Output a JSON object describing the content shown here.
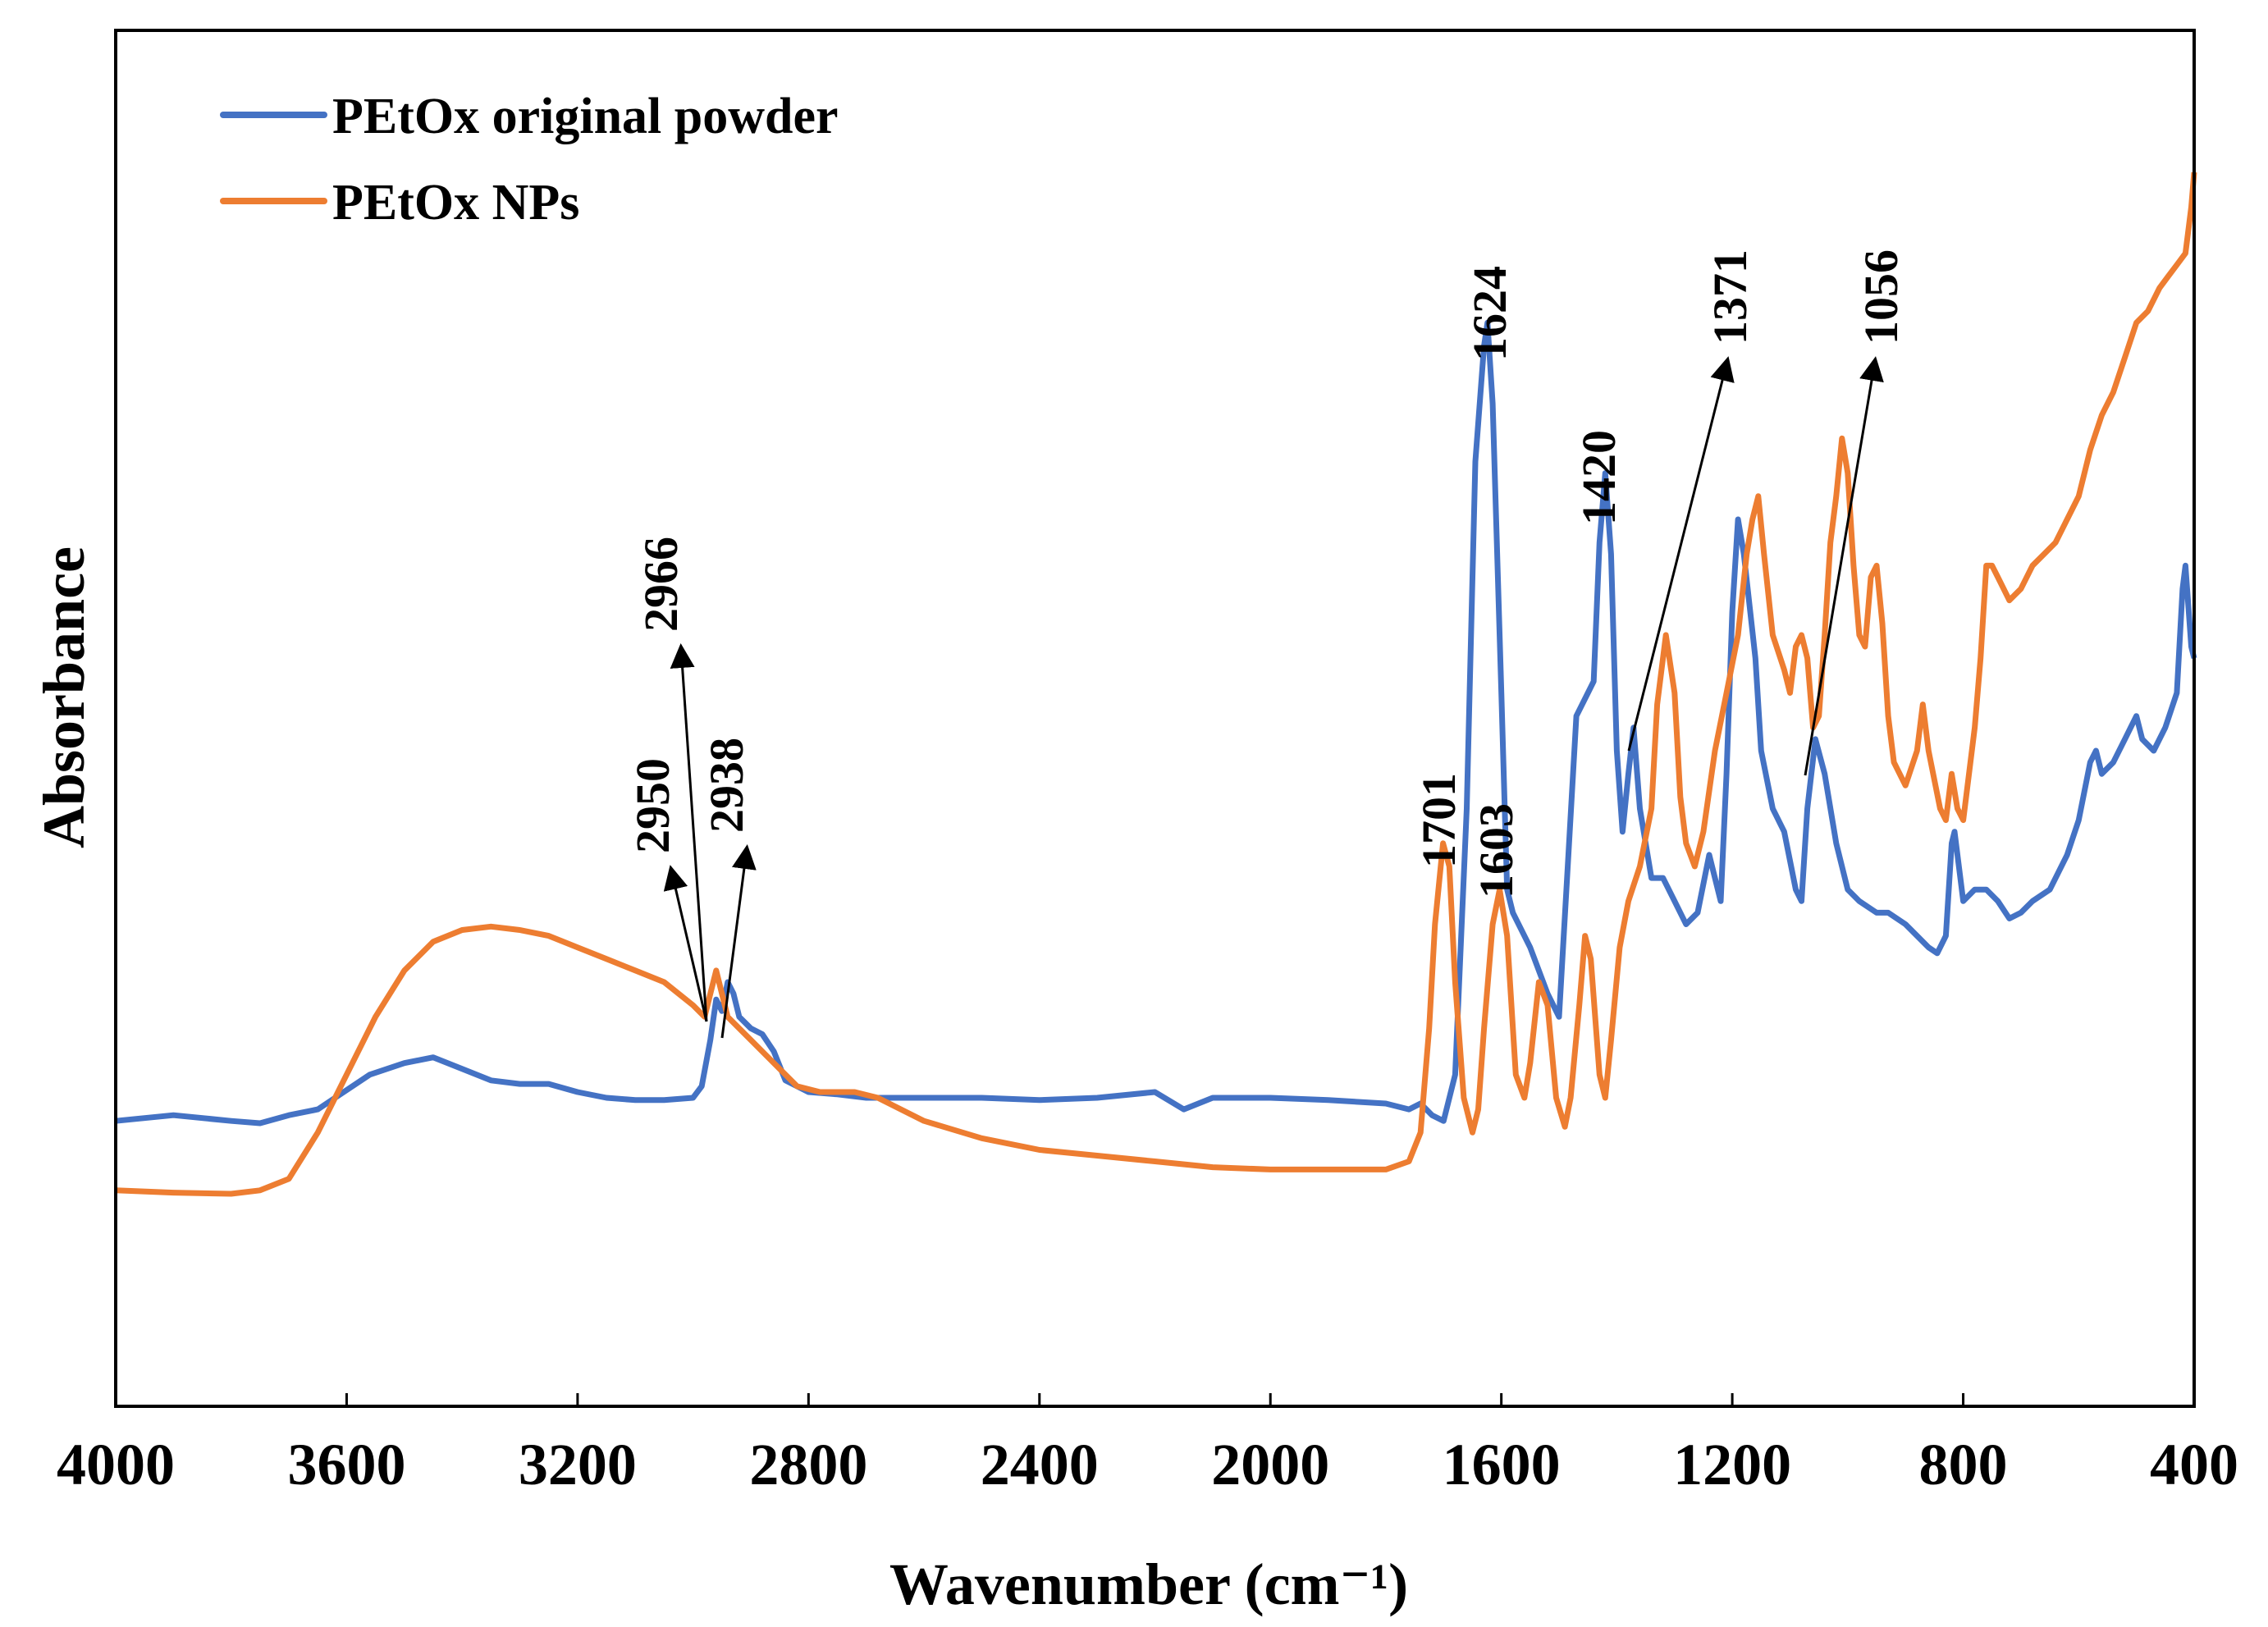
{
  "chart_data": {
    "type": "line",
    "title": "",
    "xlabel": "Wavenumber (cm⁻¹)",
    "ylabel": "Absorbance",
    "xlim": [
      4000,
      400
    ],
    "ylim": [
      0,
      1
    ],
    "x_reversed": true,
    "y_ticks_shown": false,
    "grid": false,
    "legend_position": "top-left",
    "x_ticks": [
      {
        "value": 4000,
        "label": "4000"
      },
      {
        "value": 3600,
        "label": "3600"
      },
      {
        "value": 3200,
        "label": "3200"
      },
      {
        "value": 2800,
        "label": "2800"
      },
      {
        "value": 2400,
        "label": "2400"
      },
      {
        "value": 2000,
        "label": "2000"
      },
      {
        "value": 1600,
        "label": "1600"
      },
      {
        "value": 1200,
        "label": "1200"
      },
      {
        "value": 800,
        "label": "800"
      },
      {
        "value": 400,
        "label": "400"
      }
    ],
    "series": [
      {
        "name": "PEtOx original powder",
        "color": "#4472C4",
        "points": [
          [
            4000,
            0.18
          ],
          [
            3900,
            0.185
          ],
          [
            3800,
            0.18
          ],
          [
            3750,
            0.178
          ],
          [
            3700,
            0.185
          ],
          [
            3650,
            0.19
          ],
          [
            3620,
            0.2
          ],
          [
            3560,
            0.22
          ],
          [
            3500,
            0.23
          ],
          [
            3450,
            0.235
          ],
          [
            3400,
            0.225
          ],
          [
            3350,
            0.215
          ],
          [
            3300,
            0.212
          ],
          [
            3250,
            0.212
          ],
          [
            3200,
            0.205
          ],
          [
            3150,
            0.2
          ],
          [
            3100,
            0.198
          ],
          [
            3050,
            0.198
          ],
          [
            3000,
            0.2
          ],
          [
            2985,
            0.21
          ],
          [
            2970,
            0.25
          ],
          [
            2960,
            0.285
          ],
          [
            2950,
            0.275
          ],
          [
            2940,
            0.3
          ],
          [
            2930,
            0.29
          ],
          [
            2920,
            0.27
          ],
          [
            2900,
            0.26
          ],
          [
            2880,
            0.255
          ],
          [
            2860,
            0.24
          ],
          [
            2840,
            0.215
          ],
          [
            2800,
            0.205
          ],
          [
            2750,
            0.203
          ],
          [
            2700,
            0.2
          ],
          [
            2600,
            0.2
          ],
          [
            2500,
            0.2
          ],
          [
            2400,
            0.198
          ],
          [
            2300,
            0.2
          ],
          [
            2200,
            0.205
          ],
          [
            2150,
            0.19
          ],
          [
            2100,
            0.2
          ],
          [
            2000,
            0.2
          ],
          [
            1900,
            0.198
          ],
          [
            1800,
            0.195
          ],
          [
            1760,
            0.19
          ],
          [
            1740,
            0.195
          ],
          [
            1720,
            0.185
          ],
          [
            1700,
            0.18
          ],
          [
            1680,
            0.22
          ],
          [
            1660,
            0.45
          ],
          [
            1645,
            0.75
          ],
          [
            1630,
            0.85
          ],
          [
            1624,
            0.87
          ],
          [
            1615,
            0.8
          ],
          [
            1600,
            0.55
          ],
          [
            1590,
            0.38
          ],
          [
            1580,
            0.36
          ],
          [
            1550,
            0.33
          ],
          [
            1520,
            0.29
          ],
          [
            1500,
            0.27
          ],
          [
            1485,
            0.4
          ],
          [
            1470,
            0.53
          ],
          [
            1450,
            0.55
          ],
          [
            1440,
            0.56
          ],
          [
            1430,
            0.68
          ],
          [
            1420,
            0.74
          ],
          [
            1410,
            0.67
          ],
          [
            1400,
            0.5
          ],
          [
            1390,
            0.43
          ],
          [
            1380,
            0.48
          ],
          [
            1371,
            0.52
          ],
          [
            1360,
            0.45
          ],
          [
            1340,
            0.39
          ],
          [
            1320,
            0.39
          ],
          [
            1300,
            0.37
          ],
          [
            1280,
            0.35
          ],
          [
            1260,
            0.36
          ],
          [
            1240,
            0.41
          ],
          [
            1220,
            0.37
          ],
          [
            1210,
            0.48
          ],
          [
            1200,
            0.62
          ],
          [
            1190,
            0.7
          ],
          [
            1180,
            0.67
          ],
          [
            1160,
            0.58
          ],
          [
            1150,
            0.5
          ],
          [
            1130,
            0.45
          ],
          [
            1110,
            0.43
          ],
          [
            1090,
            0.38
          ],
          [
            1080,
            0.37
          ],
          [
            1070,
            0.45
          ],
          [
            1056,
            0.51
          ],
          [
            1040,
            0.48
          ],
          [
            1020,
            0.42
          ],
          [
            1000,
            0.38
          ],
          [
            980,
            0.37
          ],
          [
            950,
            0.36
          ],
          [
            930,
            0.36
          ],
          [
            900,
            0.35
          ],
          [
            880,
            0.34
          ],
          [
            860,
            0.33
          ],
          [
            845,
            0.325
          ],
          [
            830,
            0.34
          ],
          [
            820,
            0.42
          ],
          [
            815,
            0.43
          ],
          [
            800,
            0.37
          ],
          [
            780,
            0.38
          ],
          [
            760,
            0.38
          ],
          [
            740,
            0.37
          ],
          [
            720,
            0.355
          ],
          [
            700,
            0.36
          ],
          [
            680,
            0.37
          ],
          [
            650,
            0.38
          ],
          [
            620,
            0.41
          ],
          [
            600,
            0.44
          ],
          [
            580,
            0.49
          ],
          [
            570,
            0.5
          ],
          [
            560,
            0.48
          ],
          [
            540,
            0.49
          ],
          [
            520,
            0.51
          ],
          [
            500,
            0.53
          ],
          [
            490,
            0.51
          ],
          [
            470,
            0.5
          ],
          [
            450,
            0.52
          ],
          [
            430,
            0.55
          ],
          [
            420,
            0.64
          ],
          [
            415,
            0.66
          ],
          [
            405,
            0.59
          ],
          [
            400,
            0.58
          ]
        ]
      },
      {
        "name": "PEtOx NPs",
        "color": "#ED7D31",
        "points": [
          [
            4000,
            0.12
          ],
          [
            3900,
            0.118
          ],
          [
            3800,
            0.117
          ],
          [
            3750,
            0.12
          ],
          [
            3700,
            0.13
          ],
          [
            3650,
            0.17
          ],
          [
            3600,
            0.22
          ],
          [
            3550,
            0.27
          ],
          [
            3500,
            0.31
          ],
          [
            3450,
            0.335
          ],
          [
            3400,
            0.345
          ],
          [
            3350,
            0.348
          ],
          [
            3300,
            0.345
          ],
          [
            3250,
            0.34
          ],
          [
            3200,
            0.33
          ],
          [
            3150,
            0.32
          ],
          [
            3100,
            0.31
          ],
          [
            3050,
            0.3
          ],
          [
            3000,
            0.28
          ],
          [
            2980,
            0.27
          ],
          [
            2970,
            0.29
          ],
          [
            2960,
            0.31
          ],
          [
            2950,
            0.29
          ],
          [
            2940,
            0.27
          ],
          [
            2900,
            0.25
          ],
          [
            2860,
            0.23
          ],
          [
            2820,
            0.21
          ],
          [
            2780,
            0.205
          ],
          [
            2720,
            0.205
          ],
          [
            2680,
            0.2
          ],
          [
            2600,
            0.18
          ],
          [
            2500,
            0.165
          ],
          [
            2400,
            0.155
          ],
          [
            2300,
            0.15
          ],
          [
            2200,
            0.145
          ],
          [
            2100,
            0.14
          ],
          [
            2000,
            0.138
          ],
          [
            1900,
            0.138
          ],
          [
            1800,
            0.138
          ],
          [
            1760,
            0.145
          ],
          [
            1740,
            0.17
          ],
          [
            1725,
            0.26
          ],
          [
            1715,
            0.35
          ],
          [
            1701,
            0.42
          ],
          [
            1690,
            0.4
          ],
          [
            1680,
            0.3
          ],
          [
            1665,
            0.2
          ],
          [
            1650,
            0.17
          ],
          [
            1640,
            0.19
          ],
          [
            1630,
            0.26
          ],
          [
            1615,
            0.35
          ],
          [
            1603,
            0.38
          ],
          [
            1590,
            0.34
          ],
          [
            1575,
            0.22
          ],
          [
            1560,
            0.2
          ],
          [
            1550,
            0.23
          ],
          [
            1535,
            0.3
          ],
          [
            1520,
            0.28
          ],
          [
            1505,
            0.2
          ],
          [
            1490,
            0.175
          ],
          [
            1480,
            0.2
          ],
          [
            1465,
            0.28
          ],
          [
            1455,
            0.34
          ],
          [
            1445,
            0.32
          ],
          [
            1430,
            0.22
          ],
          [
            1420,
            0.2
          ],
          [
            1410,
            0.25
          ],
          [
            1395,
            0.33
          ],
          [
            1380,
            0.37
          ],
          [
            1360,
            0.4
          ],
          [
            1340,
            0.45
          ],
          [
            1330,
            0.54
          ],
          [
            1315,
            0.6
          ],
          [
            1300,
            0.55
          ],
          [
            1290,
            0.46
          ],
          [
            1280,
            0.42
          ],
          [
            1265,
            0.4
          ],
          [
            1250,
            0.43
          ],
          [
            1230,
            0.5
          ],
          [
            1210,
            0.55
          ],
          [
            1190,
            0.6
          ],
          [
            1175,
            0.67
          ],
          [
            1165,
            0.7
          ],
          [
            1155,
            0.72
          ],
          [
            1145,
            0.67
          ],
          [
            1130,
            0.6
          ],
          [
            1110,
            0.57
          ],
          [
            1100,
            0.55
          ],
          [
            1090,
            0.59
          ],
          [
            1080,
            0.6
          ],
          [
            1070,
            0.58
          ],
          [
            1060,
            0.52
          ],
          [
            1050,
            0.53
          ],
          [
            1040,
            0.6
          ],
          [
            1030,
            0.68
          ],
          [
            1020,
            0.72
          ],
          [
            1010,
            0.77
          ],
          [
            1000,
            0.74
          ],
          [
            990,
            0.66
          ],
          [
            980,
            0.6
          ],
          [
            970,
            0.59
          ],
          [
            960,
            0.65
          ],
          [
            950,
            0.66
          ],
          [
            940,
            0.61
          ],
          [
            930,
            0.53
          ],
          [
            920,
            0.49
          ],
          [
            900,
            0.47
          ],
          [
            880,
            0.5
          ],
          [
            870,
            0.54
          ],
          [
            860,
            0.5
          ],
          [
            840,
            0.45
          ],
          [
            830,
            0.44
          ],
          [
            820,
            0.48
          ],
          [
            810,
            0.45
          ],
          [
            800,
            0.44
          ],
          [
            790,
            0.48
          ],
          [
            780,
            0.52
          ],
          [
            770,
            0.58
          ],
          [
            760,
            0.66
          ],
          [
            750,
            0.66
          ],
          [
            740,
            0.65
          ],
          [
            730,
            0.64
          ],
          [
            720,
            0.63
          ],
          [
            700,
            0.64
          ],
          [
            680,
            0.66
          ],
          [
            660,
            0.67
          ],
          [
            640,
            0.68
          ],
          [
            620,
            0.7
          ],
          [
            600,
            0.72
          ],
          [
            580,
            0.76
          ],
          [
            560,
            0.79
          ],
          [
            540,
            0.81
          ],
          [
            520,
            0.84
          ],
          [
            500,
            0.87
          ],
          [
            480,
            0.88
          ],
          [
            460,
            0.9
          ],
          [
            445,
            0.91
          ],
          [
            430,
            0.92
          ],
          [
            415,
            0.93
          ],
          [
            405,
            0.97
          ],
          [
            400,
            1.0
          ]
        ]
      }
    ],
    "peak_annotations": [
      {
        "label": "2950",
        "series": "PEtOx NPs"
      },
      {
        "label": "2966",
        "series": "PEtOx NPs"
      },
      {
        "label": "2938",
        "series": "PEtOx original powder"
      },
      {
        "label": "1701",
        "series": "PEtOx NPs"
      },
      {
        "label": "1603",
        "series": "PEtOx NPs"
      },
      {
        "label": "1624",
        "series": "PEtOx original powder"
      },
      {
        "label": "1420",
        "series": "PEtOx original powder"
      },
      {
        "label": "1371",
        "series": "PEtOx original powder"
      },
      {
        "label": "1056",
        "series": "PEtOx original powder"
      }
    ]
  }
}
